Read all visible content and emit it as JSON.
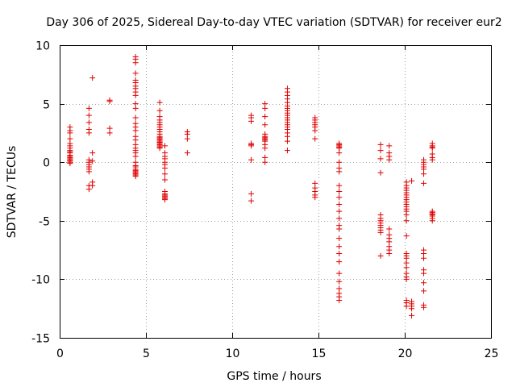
{
  "chart_data": {
    "type": "scatter",
    "title": "Day 306 of 2025, Sidereal Day-to-day VTEC variation (SDTVAR) for receiver eur2",
    "xlabel": "GPS time / hours",
    "ylabel": "SDTVAR / TECUs",
    "xlim": [
      0,
      25
    ],
    "ylim": [
      -15,
      10
    ],
    "xticks": [
      0,
      5,
      10,
      15,
      20,
      25
    ],
    "yticks": [
      -15,
      -10,
      -5,
      0,
      5,
      10
    ],
    "grid": true,
    "marker": "+",
    "color": "#e00000",
    "series": [
      {
        "name": "SDTVAR",
        "x": [
          0.6,
          0.6,
          0.6,
          0.6,
          0.6,
          0.6,
          0.6,
          0.6,
          0.6,
          0.6,
          0.6,
          0.6,
          0.6,
          0.6,
          0.6,
          0.6,
          0.6,
          0.6,
          1.7,
          1.7,
          1.7,
          1.7,
          1.7,
          1.7,
          1.7,
          1.7,
          1.7,
          1.7,
          1.7,
          1.7,
          1.7,
          1.9,
          1.9,
          1.9,
          1.9,
          1.9,
          2.9,
          2.9,
          2.9,
          2.9,
          4.4,
          4.4,
          4.4,
          4.4,
          4.4,
          4.4,
          4.4,
          4.4,
          4.4,
          4.4,
          4.4,
          4.4,
          4.4,
          4.4,
          4.4,
          4.4,
          4.4,
          4.4,
          4.4,
          4.4,
          4.4,
          4.4,
          4.4,
          4.4,
          4.4,
          4.4,
          4.4,
          4.4,
          4.4,
          4.4,
          4.4,
          4.4,
          4.4,
          5.8,
          5.8,
          5.8,
          5.8,
          5.8,
          5.8,
          5.8,
          5.8,
          5.8,
          5.8,
          5.8,
          5.8,
          5.8,
          5.8,
          5.8,
          5.8,
          5.8,
          5.8,
          5.8,
          5.8,
          5.8,
          6.1,
          6.1,
          6.1,
          6.1,
          6.1,
          6.1,
          6.1,
          6.1,
          6.1,
          6.1,
          6.1,
          6.1,
          6.1,
          6.1,
          6.1,
          6.1,
          7.4,
          7.4,
          7.4,
          7.4,
          11.1,
          11.1,
          11.1,
          11.1,
          11.1,
          11.1,
          11.1,
          11.1,
          11.1,
          11.9,
          11.9,
          11.9,
          11.9,
          11.9,
          11.9,
          11.9,
          11.9,
          11.9,
          11.9,
          11.9,
          11.9,
          11.9,
          11.9,
          13.2,
          13.2,
          13.2,
          13.2,
          13.2,
          13.2,
          13.2,
          13.2,
          13.2,
          13.2,
          13.2,
          13.2,
          13.2,
          13.2,
          13.2,
          13.2,
          13.2,
          13.2,
          13.2,
          13.2,
          14.8,
          14.8,
          14.8,
          14.8,
          14.8,
          14.8,
          14.8,
          14.8,
          14.8,
          14.8,
          14.8,
          14.8,
          16.2,
          16.2,
          16.2,
          16.2,
          16.2,
          16.2,
          16.2,
          16.2,
          16.2,
          16.2,
          16.2,
          16.2,
          16.2,
          16.2,
          16.2,
          16.2,
          16.2,
          16.2,
          16.2,
          16.2,
          16.2,
          16.2,
          16.2,
          16.2,
          16.2,
          16.2,
          16.2,
          18.6,
          18.6,
          18.6,
          18.6,
          18.6,
          18.6,
          18.6,
          18.6,
          18.6,
          18.6,
          18.6,
          18.6,
          18.6,
          19.1,
          19.1,
          19.1,
          19.1,
          19.1,
          19.1,
          19.1,
          19.1,
          19.1,
          19.1,
          19.1,
          20.1,
          20.1,
          20.1,
          20.1,
          20.1,
          20.1,
          20.1,
          20.1,
          20.1,
          20.1,
          20.1,
          20.1,
          20.1,
          20.1,
          20.1,
          20.1,
          20.1,
          20.1,
          20.1,
          20.1,
          20.1,
          20.1,
          20.1,
          20.1,
          20.1,
          20.1,
          20.1,
          20.4,
          20.4,
          20.4,
          20.4,
          20.4,
          20.4,
          21.1,
          21.1,
          21.1,
          21.1,
          21.1,
          21.1,
          21.1,
          21.1,
          21.1,
          21.1,
          21.1,
          21.1,
          21.1,
          21.1,
          21.1,
          21.1,
          21.6,
          21.6,
          21.6,
          21.6,
          21.6,
          21.6,
          21.6,
          21.6,
          21.6,
          21.6,
          21.6,
          21.6,
          21.6,
          21.6
        ],
        "y": [
          3.0,
          2.7,
          2.5,
          2.0,
          1.6,
          1.4,
          1.2,
          1.0,
          0.9,
          0.8,
          0.6,
          0.5,
          0.4,
          0.3,
          0.2,
          0.1,
          0.0,
          -0.1,
          4.6,
          4.0,
          3.4,
          2.8,
          2.5,
          0.2,
          0.0,
          -0.2,
          -0.4,
          -0.6,
          -0.8,
          -2.0,
          -2.3,
          7.2,
          0.8,
          0.1,
          -1.7,
          -2.0,
          5.3,
          5.2,
          2.9,
          2.5,
          9.0,
          8.8,
          8.5,
          7.6,
          7.0,
          6.8,
          6.5,
          6.3,
          6.0,
          5.7,
          5.0,
          4.6,
          3.8,
          3.3,
          3.0,
          2.7,
          2.2,
          1.9,
          1.5,
          1.2,
          1.0,
          0.8,
          0.5,
          0.0,
          -0.3,
          -0.6,
          -0.8,
          -1.0,
          -1.1,
          -1.2,
          -0.9,
          -0.7,
          -0.4,
          5.1,
          4.4,
          3.9,
          3.6,
          3.4,
          3.2,
          3.0,
          2.8,
          2.6,
          2.4,
          2.2,
          2.1,
          2.0,
          1.9,
          1.8,
          1.7,
          1.6,
          1.5,
          1.4,
          1.3,
          1.2,
          1.4,
          0.8,
          0.5,
          0.3,
          0.0,
          -0.2,
          -0.5,
          -1.0,
          -1.5,
          -2.5,
          -2.7,
          -2.9,
          -3.0,
          -3.1,
          -3.2,
          -2.8,
          2.6,
          2.4,
          2.0,
          0.8,
          4.0,
          3.8,
          3.5,
          1.6,
          1.5,
          1.4,
          0.2,
          -2.7,
          -3.3,
          5.0,
          4.6,
          3.9,
          3.2,
          2.4,
          2.2,
          2.1,
          2.0,
          1.9,
          1.8,
          1.5,
          1.2,
          0.4,
          0.0,
          6.3,
          6.0,
          5.7,
          5.4,
          5.1,
          4.8,
          4.6,
          4.4,
          4.2,
          4.0,
          3.8,
          3.6,
          3.4,
          3.2,
          3.0,
          2.8,
          2.5,
          2.2,
          1.8,
          1.0,
          3.8,
          3.6,
          3.4,
          3.2,
          3.0,
          2.7,
          2.0,
          -1.8,
          -2.2,
          -2.5,
          -2.8,
          -3.0,
          1.6,
          1.5,
          1.4,
          1.3,
          1.2,
          0.8,
          0.0,
          -0.5,
          -0.8,
          -2.0,
          -2.5,
          -3.0,
          -3.6,
          -4.2,
          -4.8,
          -5.4,
          -5.7,
          -6.5,
          -7.2,
          -7.8,
          -8.5,
          -9.5,
          -10.2,
          -10.8,
          -11.2,
          -11.5,
          -11.8,
          1.5,
          1.0,
          0.3,
          -0.9,
          -4.5,
          -4.8,
          -5.0,
          -5.2,
          -5.4,
          -5.6,
          -5.8,
          -6.0,
          -8.0,
          1.4,
          0.8,
          0.5,
          0.2,
          -5.7,
          -6.2,
          -6.5,
          -6.8,
          -7.2,
          -7.5,
          -7.8,
          -1.7,
          -2.0,
          -2.2,
          -2.4,
          -2.6,
          -2.8,
          -3.0,
          -3.2,
          -3.4,
          -3.6,
          -3.8,
          -4.0,
          -4.2,
          -4.5,
          -5.0,
          -6.3,
          -7.8,
          -8.0,
          -8.2,
          -8.6,
          -9.0,
          -9.5,
          -9.8,
          -10.0,
          -11.8,
          -12.0,
          -12.3,
          -1.6,
          -11.9,
          -12.1,
          -12.3,
          -12.5,
          -13.1,
          0.2,
          0.0,
          -0.2,
          -0.4,
          -0.6,
          -1.0,
          -1.8,
          -7.5,
          -7.8,
          -8.2,
          -9.2,
          -9.5,
          -10.3,
          -11.0,
          -12.2,
          -12.4,
          1.6,
          1.4,
          1.3,
          1.2,
          0.7,
          0.4,
          0.2,
          -4.2,
          -4.3,
          -4.4,
          -4.5,
          -4.6,
          -4.8,
          -5.0
        ]
      }
    ]
  }
}
